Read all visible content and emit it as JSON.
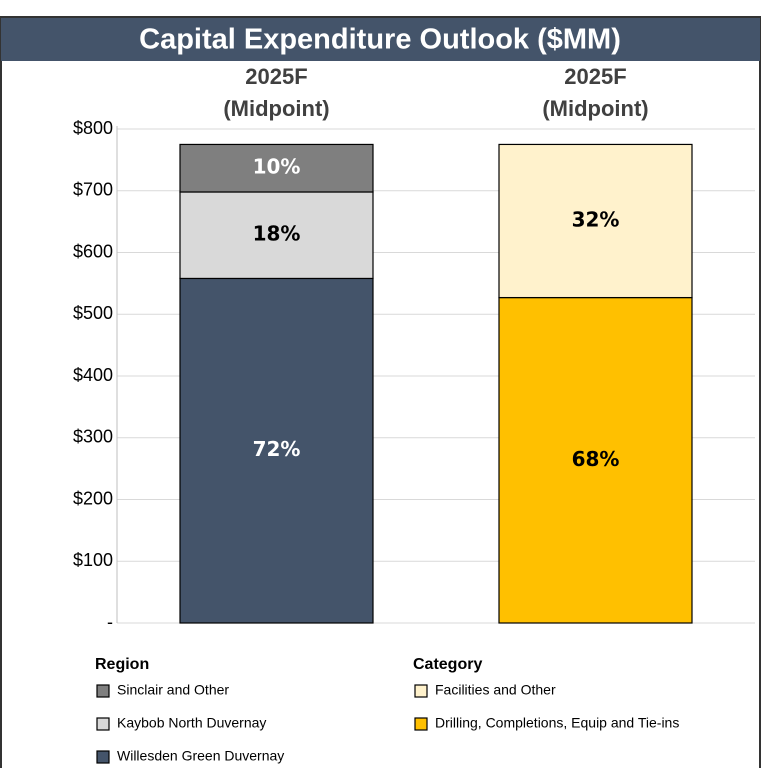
{
  "chart_data": {
    "type": "bar",
    "stacked": true,
    "title": "Capital Expenditure Outlook ($MM)",
    "categories": [
      "2025F\n(Midpoint)",
      "2025F\n(Midpoint)"
    ],
    "ylim": [
      0,
      800
    ],
    "yticks": [
      {
        "value": 0,
        "label": "-"
      },
      {
        "value": 100,
        "label": "$100"
      },
      {
        "value": 200,
        "label": "$200"
      },
      {
        "value": 300,
        "label": "$300"
      },
      {
        "value": 400,
        "label": "$400"
      },
      {
        "value": 500,
        "label": "$500"
      },
      {
        "value": 600,
        "label": "$600"
      },
      {
        "value": 700,
        "label": "$700"
      },
      {
        "value": 800,
        "label": "$800"
      }
    ],
    "grid": true,
    "legend_titles": [
      "Region",
      "Category"
    ],
    "series": [
      {
        "name": "Willesden Green Duvernay",
        "color": "#44546a",
        "label_color": "#ffffff",
        "group": 0,
        "legend_row": 2,
        "values": [
          558,
          null
        ],
        "labels": [
          "72%",
          null
        ]
      },
      {
        "name": "Kaybob North Duvernay",
        "color": "#d9d9d9",
        "label_color": "#000000",
        "group": 0,
        "legend_row": 1,
        "values": [
          140,
          null
        ],
        "labels": [
          "18%",
          null
        ]
      },
      {
        "name": "Sinclair and Other",
        "color": "#7f7f7f",
        "label_color": "#ffffff",
        "group": 0,
        "legend_row": 0,
        "values": [
          77,
          null
        ],
        "labels": [
          "10%",
          null
        ]
      },
      {
        "name": "Drilling, Completions, Equip and Tie-ins",
        "color": "#ffc000",
        "label_color": "#000000",
        "group": 1,
        "legend_row": 1,
        "values": [
          null,
          527
        ],
        "labels": [
          null,
          "68%"
        ]
      },
      {
        "name": "Facilities and Other",
        "color": "#fff2cc",
        "label_color": "#000000",
        "group": 1,
        "legend_row": 0,
        "values": [
          null,
          248
        ],
        "labels": [
          null,
          "32%"
        ]
      }
    ]
  }
}
